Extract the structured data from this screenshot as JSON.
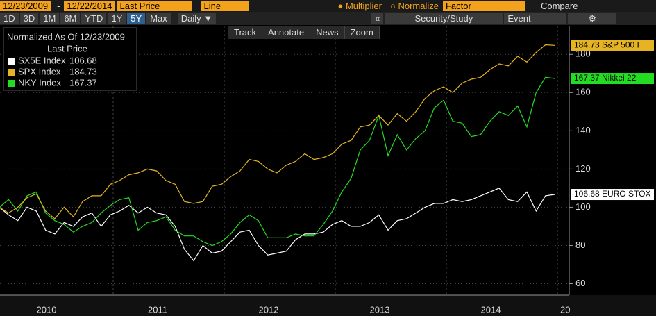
{
  "top_bar": {
    "start_date": "12/23/2009",
    "dash": "-",
    "end_date": "12/22/2014",
    "field": "Last Price",
    "style": "Line",
    "multiplier": "● Multiplier",
    "normalize": "○ Normalize",
    "factor": "Factor",
    "compare": "Compare"
  },
  "range_bar": {
    "buttons": [
      "1D",
      "3D",
      "1M",
      "6M",
      "YTD",
      "1Y",
      "5Y",
      "Max"
    ],
    "active": "5Y",
    "period": "Daily ▼",
    "collapse": "«",
    "study": "Security/Study",
    "event": "Event",
    "settings": "⚙"
  },
  "tools": [
    "Track",
    "Annotate",
    "News",
    "Zoom"
  ],
  "chart_data": {
    "type": "line",
    "legend": {
      "title": "Normalized As Of 12/23/2009",
      "subtitle": "Last Price"
    },
    "categories": [
      null,
      null,
      null,
      null,
      null,
      null,
      "2010",
      null,
      null,
      null,
      null,
      null,
      null,
      null,
      null,
      null,
      null,
      null,
      "2011",
      null,
      null,
      null,
      null,
      null,
      null,
      null,
      null,
      null,
      null,
      null,
      "2012",
      null,
      null,
      null,
      null,
      null,
      null,
      null,
      null,
      null,
      null,
      null,
      "2013",
      null,
      null,
      null,
      null,
      null,
      null,
      null,
      null,
      null,
      null,
      null,
      "2014",
      null,
      null,
      null,
      null,
      null,
      null
    ],
    "extra_xlabel": "20",
    "series": [
      {
        "name": "SX5E Index",
        "tag": "106.68 EURO STOX",
        "color": "#ffffff",
        "values": [
          100,
          96,
          93,
          100,
          98,
          88,
          86,
          92,
          90,
          95,
          97,
          90,
          96,
          98,
          101,
          97,
          100,
          97,
          96,
          90,
          78,
          72,
          80,
          76,
          77,
          82,
          87,
          88,
          80,
          75,
          76,
          77,
          83,
          86,
          86,
          87,
          91,
          93,
          90,
          90,
          92,
          96,
          88,
          93,
          94,
          97,
          100,
          102,
          102,
          104,
          103,
          104,
          106,
          108,
          110,
          104,
          103,
          108,
          98,
          106,
          106.68
        ]
      },
      {
        "name": "SPX Index",
        "tag": "184.73 S&P 500 I",
        "color": "#e6b422",
        "values": [
          100,
          97,
          100,
          105,
          107,
          98,
          94,
          100,
          95,
          103,
          106,
          106,
          112,
          114,
          117,
          118,
          120,
          119,
          114,
          112,
          103,
          102,
          103,
          111,
          112,
          116,
          119,
          125,
          124,
          120,
          118,
          122,
          124,
          128,
          125,
          126,
          128,
          133,
          135,
          142,
          143,
          148,
          143,
          149,
          145,
          150,
          157,
          161,
          163,
          160,
          165,
          167,
          168,
          172,
          175,
          174,
          179,
          176,
          181,
          185,
          184.73
        ]
      },
      {
        "name": "NKY Index",
        "tag": "167.37 Nikkei 22",
        "color": "#22dd22",
        "values": [
          100,
          104,
          98,
          106,
          108,
          97,
          93,
          91,
          87,
          90,
          92,
          97,
          101,
          104,
          105,
          88,
          92,
          93,
          95,
          88,
          85,
          85,
          82,
          80,
          82,
          86,
          92,
          96,
          93,
          84,
          84,
          84,
          86,
          85,
          85,
          91,
          98,
          108,
          115,
          130,
          135,
          148,
          127,
          138,
          130,
          136,
          140,
          152,
          156,
          145,
          144,
          137,
          138,
          145,
          150,
          148,
          153,
          142,
          160,
          168,
          167.37
        ]
      }
    ],
    "ylim": [
      54,
      195
    ],
    "yticks": [
      60,
      80,
      100,
      120,
      140,
      160,
      180
    ],
    "grid": true
  }
}
